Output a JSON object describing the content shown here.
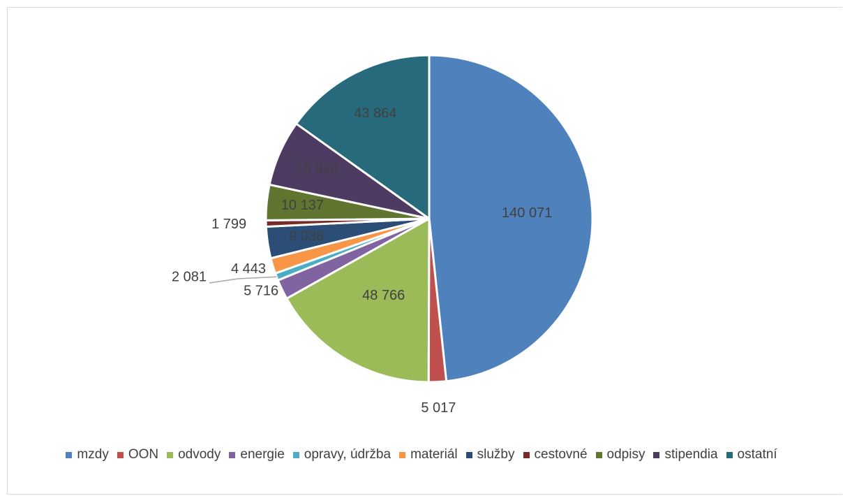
{
  "chart_data": {
    "type": "pie",
    "categories": [
      "mzdy",
      "OON",
      "odvody",
      "energie",
      "opravy, údržba",
      "materiál",
      "služby",
      "cestovné",
      "odpisy",
      "stipendia",
      "ostatní"
    ],
    "values": [
      140071,
      5017,
      48766,
      5716,
      2081,
      4443,
      9038,
      1799,
      10137,
      18928,
      43864
    ],
    "data_labels": [
      "140 071",
      "5 017",
      "48 766",
      "5 716",
      "2 081",
      "4 443",
      "9 038",
      "1 799",
      "10 137",
      "18 928",
      "43 864"
    ],
    "colors": [
      "#4F81BD",
      "#C0504D",
      "#9BBB59",
      "#8064A2",
      "#4BACC6",
      "#F79646",
      "#2C4D75",
      "#772C2A",
      "#5F7530",
      "#4D3B62",
      "#276A7C"
    ],
    "legend_position": "bottom",
    "start_angle": "12 o'clock",
    "direction": "clockwise"
  }
}
